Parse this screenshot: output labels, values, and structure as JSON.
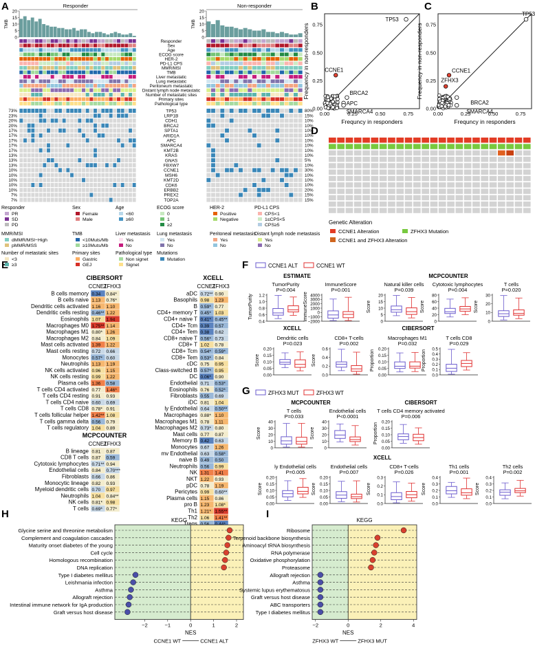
{
  "panels": {
    "A": "A",
    "B": "B",
    "C": "C",
    "D": "D",
    "E": "E",
    "F": "F",
    "G": "G",
    "H": "H",
    "I": "I"
  },
  "panelA": {
    "responder_title": "Responder",
    "nonresponder_title": "Non-responder",
    "tmb_label": "TMB",
    "tmb_ticks": [
      "20",
      "15",
      "10",
      "5",
      "0"
    ],
    "responder_tmb": [
      14,
      16,
      13,
      15,
      12,
      14,
      10,
      9,
      8,
      8,
      7,
      7,
      6,
      6,
      7,
      5,
      6,
      6,
      4,
      3,
      4,
      4,
      3,
      2,
      3,
      4,
      3,
      2,
      2,
      3,
      1
    ],
    "nonresponder_tmb": [
      12,
      10,
      13,
      9,
      8,
      8,
      7,
      6,
      7,
      6,
      5,
      5,
      6,
      4,
      4,
      3,
      4,
      3,
      2,
      2,
      3
    ],
    "clinical_tracks": [
      "Responder",
      "Sex",
      "Age",
      "ECOG score",
      "HER-2",
      "PD-L1 CPS",
      "MMR/MSI",
      "TMB",
      "Liver metastatic",
      "Lung metastatic",
      "Peritoneum metastatic",
      "Distant lymph node metastatic",
      "Number of metastatic sites",
      "Primary sites",
      "Pathological type"
    ],
    "genes": [
      "TP53",
      "LRP1B",
      "CDH1",
      "BRCA2",
      "SPTA1",
      "ARID1A",
      "APC",
      "SMARCA4",
      "KMT2B",
      "KRAS",
      "GNAS",
      "FBXW7",
      "CCNE1",
      "MSH6",
      "KMT2D",
      "CDK6",
      "ERBB2",
      "PREX2",
      "TOP2A"
    ],
    "left_pct": [
      "73%",
      "23%",
      "20%",
      "20%",
      "17%",
      "17%",
      "17%",
      "17%",
      "17%",
      "13%",
      "13%",
      "13%",
      "10%",
      "10%",
      "10%",
      "10%",
      "10%",
      "7%",
      "7%"
    ],
    "right_pct": [
      "80%",
      "15%",
      "10%",
      "10%",
      "10%",
      "10%",
      "10%",
      "10%",
      "10%",
      "10%",
      "5%",
      "10%",
      "30%",
      "10%",
      "10%",
      "10%",
      "20%",
      "15%",
      "15%"
    ],
    "legend": {
      "responder": {
        "title": "Responder",
        "items": [
          "PR",
          "SD",
          "PD"
        ]
      },
      "sex": {
        "title": "Sex",
        "items": [
          "Female",
          "Male"
        ]
      },
      "age": {
        "title": "Age",
        "items": [
          "<60",
          "≥60"
        ]
      },
      "ecog": {
        "title": "ECOG score",
        "items": [
          "0",
          "1",
          "≥2"
        ]
      },
      "her2": {
        "title": "HER-2",
        "items": [
          "Positive",
          "Negative"
        ]
      },
      "pdl1": {
        "title": "PD-L1 CPS",
        "items": [
          "CPS<1",
          "1≤CPS<5",
          "CPS≥5"
        ]
      },
      "mmr": {
        "title": "MMR/MSI",
        "items": [
          "dMMR/MSI−High",
          "pMMR/MSS"
        ]
      },
      "tmb": {
        "title": "TMB",
        "items": [
          "<10Muts/Mb",
          "≥10Muts/Mb"
        ]
      },
      "liver": {
        "title": "Liver metastasis",
        "items": [
          "Yes",
          "No"
        ]
      },
      "lung": {
        "title": "Lung metastasis",
        "items": [
          "Yes",
          "No"
        ]
      },
      "perit": {
        "title": "Peritoneal metastasis",
        "items": [
          "Yes",
          "No"
        ]
      },
      "distant": {
        "title": "Distant lymph node metastasis",
        "items": [
          "Yes",
          "No"
        ]
      },
      "nmet": {
        "title": "Number of metastatic sites",
        "items": [
          "<3",
          "≥3"
        ]
      },
      "prim": {
        "title": "Primary sites",
        "items": [
          "Gastric",
          "GEJ"
        ]
      },
      "path": {
        "title": "Pathological type",
        "items": [
          "Non signet",
          "Signet"
        ]
      },
      "mut": {
        "title": "Mutations",
        "items": [
          "Mutation"
        ]
      }
    }
  },
  "panelB": {
    "xlabel": "Frequncy in responders",
    "ylabel": "Frequency in non-responders",
    "ticks": [
      "0.00",
      "0.25",
      "0.50",
      "0.75"
    ],
    "labels": [
      "TP53",
      "CCNE1",
      "BRCA2",
      "APC",
      "SMARCA4"
    ]
  },
  "panelC": {
    "xlabel": "Frequncy in responders",
    "ylabel": "Frequency in non-responders",
    "ticks": [
      "0.00",
      "0.25",
      "0.50",
      "0.75"
    ],
    "labels": [
      "TP53",
      "CCNE1",
      "ZFHX3",
      "BRCA2",
      "SMARCA4"
    ]
  },
  "panelD": {
    "legend_title": "Genetic Alteration",
    "items": [
      "CCNE1 Alteration",
      "ZFHX3 Mutation",
      "CCNE1 and ZFHX3 Alteration"
    ]
  },
  "panelE": {
    "cibersort_title": "CIBERSORT",
    "xcell_title": "XCELL",
    "mcp_title": "MCPCOUNTER",
    "col1": "CCNE1",
    "col2": "ZFHX3",
    "cibersort": [
      [
        "B cells memory",
        "0.34",
        "0.84*"
      ],
      [
        "B cells naive",
        "1.13",
        "0.76*"
      ],
      [
        "Dendritic cells activated",
        "1.16",
        "1.10"
      ],
      [
        "Dendritic cells resting",
        "0.46**",
        "1.22"
      ],
      [
        "Eosinophils",
        "1.07",
        "1.94"
      ],
      [
        "Macrophages M0",
        "1.75**",
        "1.14"
      ],
      [
        "Macrophages M1",
        "0.80*",
        "1.26"
      ],
      [
        "Macrophages M2",
        "0.84",
        "1.09"
      ],
      [
        "Mast cells activated",
        "1.39",
        "1.22"
      ],
      [
        "Mast cells resting",
        "0.72",
        "0.66"
      ],
      [
        "Monocytes",
        "0.57*",
        "0.60"
      ],
      [
        "Neutrophils",
        "1.13",
        "1.19"
      ],
      [
        "NK cells activated",
        "0.96",
        "1.15"
      ],
      [
        "NK cells resting",
        "0.99",
        "1.22"
      ],
      [
        "Plasma cells",
        "1.36",
        "0.58"
      ],
      [
        "T cells CD4 activated",
        "0.77",
        "1.46*"
      ],
      [
        "T cells CD4 resting",
        "0.91",
        "0.93"
      ],
      [
        "T cells CD4 naive",
        "0.60",
        "0.69"
      ],
      [
        "T cells CD8",
        "0.78*",
        "0.91"
      ],
      [
        "T cells follicular helper",
        "1.42**",
        "1.08"
      ],
      [
        "T cells gamma delta",
        "0.56",
        "0.79"
      ],
      [
        "T cells regulatory",
        "1.04",
        "0.89"
      ]
    ],
    "xcell": [
      [
        "aDC",
        "0.72**",
        "0.90"
      ],
      [
        "Basophils",
        "0.98",
        "1.23"
      ],
      [
        "B",
        "0.59*",
        "0.77"
      ],
      [
        "CD4+ memory T",
        "0.45*",
        "1.03"
      ],
      [
        "CD4+ naive T",
        "0.41*",
        "0.45**"
      ],
      [
        "CD4+ Tcm",
        "0.39",
        "0.57"
      ],
      [
        "CD4+ Tem",
        "0.38",
        "0.62"
      ],
      [
        "CD8+ naive T",
        "0.56*",
        "0.73"
      ],
      [
        "CD8+ T",
        "1.02",
        "0.78"
      ],
      [
        "CD8+ Tcm",
        "0.54*",
        "0.59*"
      ],
      [
        "CD8+ Tem",
        "0.53*",
        "0.84"
      ],
      [
        "cDC",
        "0.75",
        "0.95"
      ],
      [
        "Class-switched B",
        "0.57*",
        "0.95"
      ],
      [
        "DC",
        "0.06*",
        "0.90"
      ],
      [
        "Endothelial",
        "0.71",
        "0.53*"
      ],
      [
        "Eosinophils",
        "0.76",
        "0.52*"
      ],
      [
        "Fibroblasts",
        "0.55",
        "0.69"
      ],
      [
        "iDC",
        "0.81",
        "1.04"
      ],
      [
        "ly Endothelial",
        "0.64",
        "0.50**"
      ],
      [
        "Macrophages",
        "0.88*",
        "1.10"
      ],
      [
        "Macrophages M1",
        "0.78",
        "1.11"
      ],
      [
        "Macrophages M2",
        "0.73*",
        "0.80"
      ],
      [
        "Mast cells",
        "0.77",
        "0.87"
      ],
      [
        "Memory B",
        "0.42",
        "0.63"
      ],
      [
        "Monocytes",
        "0.67",
        "1.26"
      ],
      [
        "mv Endothelial",
        "0.63",
        "0.58*"
      ],
      [
        "naive B",
        "0.49",
        "0.50"
      ],
      [
        "Neutrophils",
        "0.56",
        "0.99"
      ],
      [
        "NK",
        "1.31",
        "1.41"
      ],
      [
        "NKT",
        "1.22",
        "0.93"
      ],
      [
        "pDC",
        "0.78",
        "1.19"
      ],
      [
        "Pericytes",
        "0.99",
        "0.60**"
      ],
      [
        "Plasma cells",
        "1.15",
        "0.86"
      ],
      [
        "pro B",
        "1.23",
        "1.08*"
      ],
      [
        "Th1",
        "1.21*",
        "1.55**"
      ],
      [
        "Th2",
        "1.06",
        "1.41**"
      ],
      [
        "Tregs",
        "0.56",
        "0.44*"
      ]
    ],
    "mcp": [
      [
        "B lineage",
        "0.81",
        "0.87"
      ],
      [
        "CD8 T cells",
        "0.87",
        "0.59"
      ],
      [
        "Cytotoxic lymphocytes",
        "0.71**",
        "0.94"
      ],
      [
        "Endothelial cells",
        "0.84",
        "0.70***"
      ],
      [
        "Fibroblasts",
        "0.66",
        "0.86"
      ],
      [
        "Monocytic lineage",
        "0.82",
        "0.93"
      ],
      [
        "Myeloid dendritic cells",
        "0.70",
        "0.97"
      ],
      [
        "Neutrophils",
        "1.04",
        "0.84**"
      ],
      [
        "NK cells",
        "0.81*",
        "0.98"
      ],
      [
        "T cells",
        "0.69*",
        "0.77*"
      ]
    ]
  },
  "panelF": {
    "legend": [
      "CCNE1 ALT",
      "CCNE1 WT"
    ],
    "estimate_title": "ESTIMATE",
    "mcp_title": "MCPCOUNTER",
    "xcell_title": "XCELL",
    "cibersort_title": "CIBERSORT",
    "plots": [
      {
        "title": "TumorPurity",
        "p": "P=0.004",
        "ylabel": "TumorPurity",
        "ticks": [
          "1.2",
          "1.0",
          "0.8",
          "0.6",
          "0.4"
        ]
      },
      {
        "title": "ImmuneScore",
        "p": "P=0.001",
        "ylabel": "ImmuneScore",
        "ticks": [
          "4000",
          "3000",
          "2000",
          "1000",
          "0",
          "−1000",
          "−2000"
        ]
      },
      {
        "title": "Natural killer cells",
        "p": "P=0.039",
        "ylabel": "Score",
        "ticks": [
          "20",
          "15",
          "10",
          "5",
          "0"
        ]
      },
      {
        "title": "Cytotoxic lymphocytes",
        "p": "P=0.004",
        "ylabel": "Score",
        "ticks": [
          "80",
          "60",
          "40",
          "20",
          "0"
        ]
      },
      {
        "title": "T cells",
        "p": "P=0.020",
        "ylabel": "Score",
        "ticks": [
          "30",
          "20",
          "10",
          "0"
        ]
      },
      {
        "title": "Dendritic cells",
        "p": "P=0.023",
        "ylabel": "Score",
        "ticks": [
          "0.20",
          "0.15",
          "0.10",
          "0.05",
          "0.00"
        ]
      },
      {
        "title": "CD8+ T-cells",
        "p": "P=0.002",
        "ylabel": "Score",
        "ticks": [
          "0.6",
          "0.4",
          "0.2",
          "0.0"
        ]
      },
      {
        "title": "Macrophages M1",
        "p": "P=0.032",
        "ylabel": "Proportion",
        "ticks": [
          "0.20",
          "0.15",
          "0.10",
          "0.05",
          "0.00"
        ]
      },
      {
        "title": "T cells CD8",
        "p": "P=0.029",
        "ylabel": "Proportion",
        "ticks": [
          "0.5",
          "0.4",
          "0.3",
          "0.2",
          "0.1",
          "0.0"
        ]
      }
    ]
  },
  "panelG": {
    "legend": [
      "ZFHX3 MUT",
      "ZFHX3 WT"
    ],
    "mcp_title": "MCPCOUNTER",
    "cibersort_title": "CIBERSORT",
    "xcell_title": "XCELL",
    "plots": [
      {
        "title": "T cells",
        "p": "P=0.033",
        "ylabel": "Score",
        "ticks": [
          "40",
          "30",
          "20",
          "10",
          "0"
        ]
      },
      {
        "title": "Endothelial cells",
        "p": "P<0.0001",
        "ylabel": "Score",
        "ticks": [
          "40",
          "30",
          "20",
          "10",
          "0"
        ]
      },
      {
        "title": "T cells CD4 memory activated",
        "p": "P=0.006",
        "ylabel": "Proportion",
        "ticks": [
          "0.20",
          "0.15",
          "0.10",
          "0.05",
          "0.00"
        ]
      },
      {
        "title": "ly Endothelial cells",
        "p": "P=0.005",
        "ylabel": "Score",
        "ticks": [
          "0.20",
          "0.15",
          "0.10",
          "0.05",
          "0.00"
        ]
      },
      {
        "title": "Endothelial cells",
        "p": "P=0.007",
        "ylabel": "Score",
        "ticks": [
          "0.20",
          "0.15",
          "0.10",
          "0.05",
          "0.00"
        ]
      },
      {
        "title": "CD8+ T-cells",
        "p": "P=0.026",
        "ylabel": "Score",
        "ticks": [
          "0.3",
          "0.2",
          "0.1",
          "0.0"
        ]
      },
      {
        "title": "Th1 cells",
        "p": "P=0.001",
        "ylabel": "Score",
        "ticks": [
          "0.4",
          "0.3",
          "0.2",
          "0.1",
          "0.0"
        ]
      },
      {
        "title": "Th2 cells",
        "p": "P=0.002",
        "ylabel": "Score",
        "ticks": [
          "0.4",
          "0.3",
          "0.2",
          "0.1",
          "0.0"
        ]
      }
    ]
  },
  "panelH": {
    "title": "KEGG",
    "xlabel": "NES",
    "ticks": [
      "−2",
      "−1",
      "0",
      "1",
      "2"
    ],
    "left_label": "CCNE1 WT",
    "right_label": "CCNE1 ALT",
    "terms": [
      {
        "name": "Glycine serine and threonine metabolism",
        "nes": 1.7
      },
      {
        "name": "Complement and coagulation cascades",
        "nes": 1.65
      },
      {
        "name": "Maturity onset diabetes of the young",
        "nes": 1.6
      },
      {
        "name": "Cell cycle",
        "nes": 1.55
      },
      {
        "name": "Homologous recombination",
        "nes": 1.5
      },
      {
        "name": "DNA replication",
        "nes": 1.45
      },
      {
        "name": "Type I diabetes mellitus",
        "nes": -2.4
      },
      {
        "name": "Leishmania infection",
        "nes": -2.5
      },
      {
        "name": "Asthma",
        "nes": -2.6
      },
      {
        "name": "Allograft rejection",
        "nes": -2.65
      },
      {
        "name": "Intestinal immune network for IgA production",
        "nes": -2.7
      },
      {
        "name": "Graft versus host disease",
        "nes": -2.75
      }
    ]
  },
  "panelI": {
    "title": "KEGG",
    "xlabel": "NES",
    "ticks": [
      "−2",
      "0",
      "2",
      "4"
    ],
    "left_label": "ZFHX3 WT",
    "right_label": "ZFHX3 MUT",
    "terms": [
      {
        "name": "Ribosome",
        "nes": 3.4
      },
      {
        "name": "Terpenoid backbone biosynthesis",
        "nes": 1.8
      },
      {
        "name": "Aminoacyl tRNA biosynthesis",
        "nes": 1.7
      },
      {
        "name": "RNA polymerase",
        "nes": 1.6
      },
      {
        "name": "Oxidative phosphorylation",
        "nes": 1.5
      },
      {
        "name": "Proteasome",
        "nes": 1.4
      },
      {
        "name": "Allograft rejection",
        "nes": -1.7
      },
      {
        "name": "Asthma",
        "nes": -1.7
      },
      {
        "name": "Systemic lupus erythematosus",
        "nes": -1.7
      },
      {
        "name": "Graft versus host disease",
        "nes": -1.7
      },
      {
        "name": "ABC transporters",
        "nes": -1.7
      },
      {
        "name": "Type I diabetes mellitus",
        "nes": -1.7
      }
    ]
  }
}
